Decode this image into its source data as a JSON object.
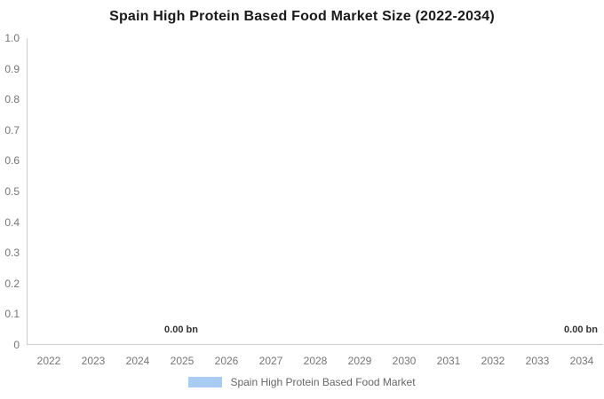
{
  "title": "Spain High Protein Based Food Market Size (2022-2034)",
  "chart_data": {
    "type": "bar",
    "title": "Spain High Protein Based Food Market Size (2022-2034)",
    "categories": [
      "2022",
      "2023",
      "2024",
      "2025",
      "2026",
      "2027",
      "2028",
      "2029",
      "2030",
      "2031",
      "2032",
      "2033",
      "2034"
    ],
    "series": [
      {
        "name": "Spain High Protein Based Food Market",
        "values": [
          0.0,
          0.0,
          0.0,
          0.0,
          0.0,
          0.0,
          0.0,
          0.0,
          0.0,
          0.0,
          0.0,
          0.0,
          0.0
        ],
        "unit": "bn",
        "color": "#a8ccf2"
      }
    ],
    "ylim": [
      0,
      1.0
    ],
    "y_ticks": [
      "1.0",
      "0.9",
      "0.8",
      "0.7",
      "0.6",
      "0.5",
      "0.4",
      "0.3",
      "0.2",
      "0.1",
      "0"
    ],
    "grid": false,
    "legend_position": "bottom",
    "data_labels": [
      {
        "text": "0.00 bn",
        "category": "2025"
      },
      {
        "text": "0.00 bn",
        "category": "2034"
      }
    ]
  },
  "legend": {
    "label": "Spain High Protein Based Food Market",
    "swatch_color": "#a8ccf2"
  },
  "colors": {
    "background": "#ffffff",
    "title_text": "#1a1a1a",
    "axis_line": "#cccccc",
    "tick_label": "#757575",
    "data_label": "#333333",
    "legend_label": "#666666"
  }
}
